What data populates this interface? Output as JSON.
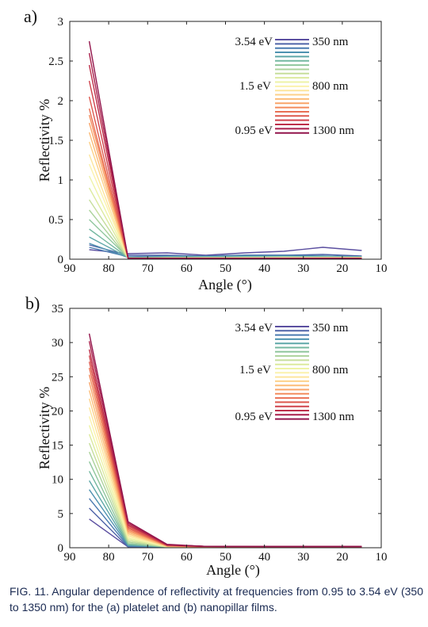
{
  "figure": {
    "caption": "FIG. 11. Angular dependence of reflectivity at frequencies from 0.95 to 3.54 eV (350 to 1350 nm) for the (a) platelet and (b) nanopillar films."
  },
  "legend": {
    "top_left": "3.54 eV",
    "top_right": "350 nm",
    "mid_left": "1.5 eV",
    "mid_right": "800 nm",
    "bottom_left": "0.95 eV",
    "bottom_right": "1300 nm",
    "colors": [
      "#5b4fa0",
      "#4f64a8",
      "#4a7bb0",
      "#4e92b0",
      "#5ea7a8",
      "#74b8a0",
      "#8fc69c",
      "#acd39c",
      "#c6de9c",
      "#dcea9e",
      "#eef3a6",
      "#fbf2ac",
      "#fde59c",
      "#fdd18a",
      "#fcbc78",
      "#f9a468",
      "#f38b5c",
      "#e97054",
      "#dd584e",
      "#cf424b",
      "#bd2f4a",
      "#a81e4a",
      "#92144b"
    ]
  },
  "chart_data": [
    {
      "type": "line",
      "panel_label": "a)",
      "xlabel": "Angle (°)",
      "ylabel": "Reflectivity %",
      "xlim": [
        90,
        10
      ],
      "ylim": [
        0,
        3
      ],
      "xticks": [
        90,
        80,
        70,
        60,
        50,
        40,
        30,
        20,
        10
      ],
      "yticks": [
        0,
        0.5,
        1,
        1.5,
        2,
        2.5,
        3
      ],
      "ytick_labels": [
        "0",
        "0.5",
        "1",
        "1.5",
        "2",
        "2.5",
        "3"
      ],
      "grid": false,
      "legend_position": "top-right",
      "x": [
        85,
        75,
        65,
        55,
        45,
        35,
        25,
        15
      ],
      "series": [
        {
          "values": [
            0.12,
            0.07,
            0.08,
            0.05,
            0.08,
            0.1,
            0.15,
            0.11
          ]
        },
        {
          "values": [
            0.18,
            0.05,
            0.05,
            0.04,
            0.05,
            0.05,
            0.06,
            0.04
          ]
        },
        {
          "values": [
            0.15,
            0.03,
            0.04,
            0.04,
            0.05,
            0.05,
            0.04,
            0.03
          ]
        },
        {
          "values": [
            0.2,
            0.02,
            0.03,
            0.03,
            0.04,
            0.04,
            0.04,
            0.03
          ]
        },
        {
          "values": [
            0.28,
            0.02,
            0.03,
            0.03,
            0.03,
            0.03,
            0.03,
            0.03
          ]
        },
        {
          "values": [
            0.38,
            0.02,
            0.02,
            0.02,
            0.03,
            0.03,
            0.03,
            0.02
          ]
        },
        {
          "values": [
            0.5,
            0.02,
            0.02,
            0.02,
            0.02,
            0.03,
            0.02,
            0.02
          ]
        },
        {
          "values": [
            0.62,
            0.01,
            0.02,
            0.02,
            0.02,
            0.02,
            0.02,
            0.02
          ]
        },
        {
          "values": [
            0.75,
            0.01,
            0.02,
            0.02,
            0.02,
            0.02,
            0.02,
            0.02
          ]
        },
        {
          "values": [
            0.9,
            0.01,
            0.01,
            0.02,
            0.02,
            0.02,
            0.02,
            0.02
          ]
        },
        {
          "values": [
            1.05,
            0.01,
            0.01,
            0.01,
            0.02,
            0.02,
            0.02,
            0.02
          ]
        },
        {
          "values": [
            1.2,
            0.01,
            0.01,
            0.01,
            0.01,
            0.02,
            0.02,
            0.02
          ]
        },
        {
          "values": [
            1.32,
            0.01,
            0.01,
            0.01,
            0.01,
            0.01,
            0.02,
            0.02
          ]
        },
        {
          "values": [
            1.48,
            0.01,
            0.01,
            0.01,
            0.01,
            0.01,
            0.01,
            0.01
          ]
        },
        {
          "values": [
            1.6,
            0.01,
            0.01,
            0.01,
            0.01,
            0.01,
            0.01,
            0.01
          ]
        },
        {
          "values": [
            1.72,
            0.01,
            0.01,
            0.01,
            0.01,
            0.01,
            0.01,
            0.01
          ]
        },
        {
          "values": [
            1.82,
            0.01,
            0.01,
            0.01,
            0.01,
            0.01,
            0.01,
            0.01
          ]
        },
        {
          "values": [
            1.9,
            0.01,
            0.01,
            0.01,
            0.01,
            0.01,
            0.01,
            0.01
          ]
        },
        {
          "values": [
            2.05,
            0.01,
            0.01,
            0.01,
            0.01,
            0.01,
            0.01,
            0.01
          ]
        },
        {
          "values": [
            2.25,
            0.01,
            0.01,
            0.01,
            0.01,
            0.01,
            0.01,
            0.01
          ]
        },
        {
          "values": [
            2.45,
            0.01,
            0.01,
            0.01,
            0.01,
            0.01,
            0.01,
            0.01
          ]
        },
        {
          "values": [
            2.6,
            0.01,
            0.01,
            0.01,
            0.01,
            0.01,
            0.01,
            0.01
          ]
        },
        {
          "values": [
            2.75,
            0.01,
            0.01,
            0.01,
            0.01,
            0.01,
            0.01,
            0.01
          ]
        }
      ]
    },
    {
      "type": "line",
      "panel_label": "b)",
      "xlabel": "Angle (°)",
      "ylabel": "Reflectivity %",
      "xlim": [
        90,
        10
      ],
      "ylim": [
        0,
        35
      ],
      "xticks": [
        90,
        80,
        70,
        60,
        50,
        40,
        30,
        20,
        10
      ],
      "yticks": [
        0,
        5,
        10,
        15,
        20,
        25,
        30,
        35
      ],
      "ytick_labels": [
        "0",
        "5",
        "10",
        "15",
        "20",
        "25",
        "30",
        "35"
      ],
      "grid": false,
      "legend_position": "top-right",
      "x": [
        85,
        75,
        65,
        55,
        45,
        35,
        25,
        15
      ],
      "series": [
        {
          "values": [
            4.2,
            0.1,
            0.1,
            0.1,
            0.1,
            0.1,
            0.1,
            0.1
          ]
        },
        {
          "values": [
            5.8,
            0.1,
            0.1,
            0.1,
            0.1,
            0.1,
            0.1,
            0.1
          ]
        },
        {
          "values": [
            7.2,
            0.2,
            0.1,
            0.1,
            0.1,
            0.1,
            0.1,
            0.1
          ]
        },
        {
          "values": [
            8.5,
            0.3,
            0.1,
            0.1,
            0.1,
            0.1,
            0.1,
            0.1
          ]
        },
        {
          "values": [
            9.8,
            0.4,
            0.1,
            0.1,
            0.1,
            0.1,
            0.1,
            0.1
          ]
        },
        {
          "values": [
            11.2,
            0.5,
            0.1,
            0.1,
            0.1,
            0.1,
            0.1,
            0.1
          ]
        },
        {
          "values": [
            12.6,
            0.6,
            0.1,
            0.1,
            0.1,
            0.1,
            0.1,
            0.1
          ]
        },
        {
          "values": [
            14.0,
            0.8,
            0.1,
            0.1,
            0.1,
            0.1,
            0.1,
            0.1
          ]
        },
        {
          "values": [
            15.3,
            1.0,
            0.1,
            0.1,
            0.1,
            0.1,
            0.1,
            0.1
          ]
        },
        {
          "values": [
            16.6,
            1.2,
            0.1,
            0.1,
            0.1,
            0.1,
            0.1,
            0.1
          ]
        },
        {
          "values": [
            17.9,
            1.4,
            0.2,
            0.1,
            0.1,
            0.1,
            0.1,
            0.1
          ]
        },
        {
          "values": [
            19.2,
            1.6,
            0.2,
            0.1,
            0.1,
            0.1,
            0.1,
            0.1
          ]
        },
        {
          "values": [
            20.5,
            1.8,
            0.2,
            0.1,
            0.1,
            0.1,
            0.1,
            0.1
          ]
        },
        {
          "values": [
            21.8,
            2.0,
            0.2,
            0.1,
            0.1,
            0.1,
            0.1,
            0.1
          ]
        },
        {
          "values": [
            23.0,
            2.2,
            0.2,
            0.1,
            0.1,
            0.1,
            0.1,
            0.1
          ]
        },
        {
          "values": [
            24.2,
            2.4,
            0.3,
            0.1,
            0.1,
            0.1,
            0.1,
            0.1
          ]
        },
        {
          "values": [
            25.3,
            2.6,
            0.3,
            0.1,
            0.1,
            0.1,
            0.1,
            0.1
          ]
        },
        {
          "values": [
            26.3,
            2.8,
            0.3,
            0.1,
            0.1,
            0.1,
            0.1,
            0.1
          ]
        },
        {
          "values": [
            27.2,
            3.0,
            0.3,
            0.2,
            0.1,
            0.1,
            0.1,
            0.1
          ]
        },
        {
          "values": [
            28.1,
            3.2,
            0.4,
            0.2,
            0.1,
            0.1,
            0.1,
            0.1
          ]
        },
        {
          "values": [
            29.0,
            3.4,
            0.4,
            0.2,
            0.2,
            0.1,
            0.1,
            0.1
          ]
        },
        {
          "values": [
            30.2,
            3.6,
            0.4,
            0.2,
            0.2,
            0.2,
            0.2,
            0.2
          ]
        },
        {
          "values": [
            31.3,
            3.8,
            0.5,
            0.2,
            0.2,
            0.2,
            0.2,
            0.2
          ]
        }
      ]
    }
  ]
}
